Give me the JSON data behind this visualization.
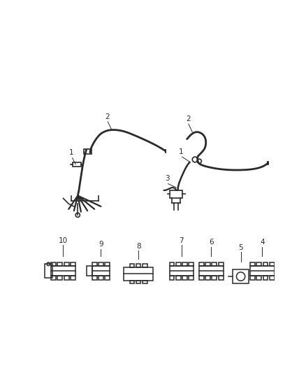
{
  "background_color": "#ffffff",
  "fig_width": 4.38,
  "fig_height": 5.33,
  "dpi": 100,
  "line_color": "#2a2a2a",
  "text_color": "#2a2a2a",
  "label_fontsize": 7.5,
  "lw_hose": 2.0,
  "lw_clip": 1.2
}
